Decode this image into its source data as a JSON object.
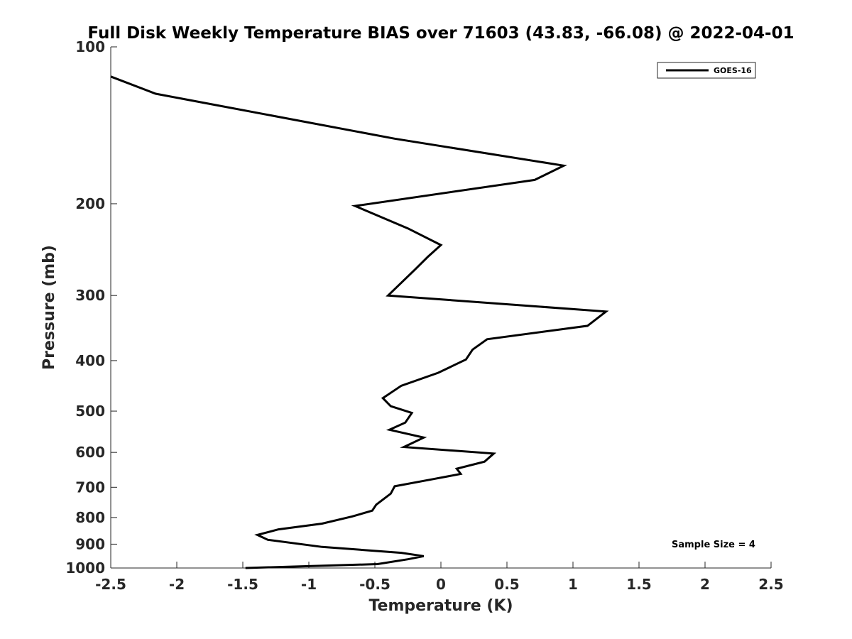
{
  "chart_data": {
    "type": "line",
    "title": "Full Disk Weekly Temperature BIAS over 71603 (43.83, -66.08) @ 2022-04-01",
    "xlabel": "Temperature (K)",
    "ylabel": "Pressure (mb)",
    "xlim": [
      -2.5,
      2.5
    ],
    "ylim": [
      100,
      1000
    ],
    "y_scale": "log",
    "y_reversed": true,
    "x_ticks": [
      "-2.5",
      "-2",
      "-1.5",
      "-1",
      "-0.5",
      "0",
      "0.5",
      "1",
      "1.5",
      "2",
      "2.5"
    ],
    "y_ticks": [
      "100",
      "200",
      "300",
      "400",
      "500",
      "600",
      "700",
      "800",
      "900",
      "1000"
    ],
    "grid": false,
    "legend_position": "top-right",
    "annotation": "Sample Size = 4",
    "series": [
      {
        "name": "GOES-16",
        "color": "#000000",
        "points": [
          [
            -2.5,
            114
          ],
          [
            -2.16,
            123
          ],
          [
            -0.35,
            150
          ],
          [
            0.93,
            169
          ],
          [
            0.71,
            180
          ],
          [
            -0.65,
            202
          ],
          [
            -0.25,
            223
          ],
          [
            0.0,
            240
          ],
          [
            -0.1,
            253
          ],
          [
            -0.2,
            268
          ],
          [
            -0.4,
            300
          ],
          [
            1.25,
            322
          ],
          [
            1.11,
            343
          ],
          [
            0.35,
            364
          ],
          [
            0.24,
            381
          ],
          [
            0.19,
            398
          ],
          [
            -0.02,
            422
          ],
          [
            -0.3,
            447
          ],
          [
            -0.44,
            472
          ],
          [
            -0.38,
            489
          ],
          [
            -0.22,
            504
          ],
          [
            -0.27,
            526
          ],
          [
            -0.39,
            543
          ],
          [
            -0.13,
            562
          ],
          [
            -0.28,
            586
          ],
          [
            0.4,
            603
          ],
          [
            0.33,
            625
          ],
          [
            0.12,
            645
          ],
          [
            0.15,
            660
          ],
          [
            -0.07,
            676
          ],
          [
            -0.35,
            697
          ],
          [
            -0.38,
            720
          ],
          [
            -0.49,
            756
          ],
          [
            -0.52,
            776
          ],
          [
            -0.67,
            796
          ],
          [
            -0.9,
            822
          ],
          [
            -1.23,
            843
          ],
          [
            -1.39,
            864
          ],
          [
            -1.31,
            883
          ],
          [
            -0.9,
            911
          ],
          [
            -0.3,
            935
          ],
          [
            -0.13,
            949
          ],
          [
            -0.25,
            962
          ],
          [
            -0.48,
            983
          ],
          [
            -1.48,
            1000
          ]
        ]
      }
    ]
  }
}
